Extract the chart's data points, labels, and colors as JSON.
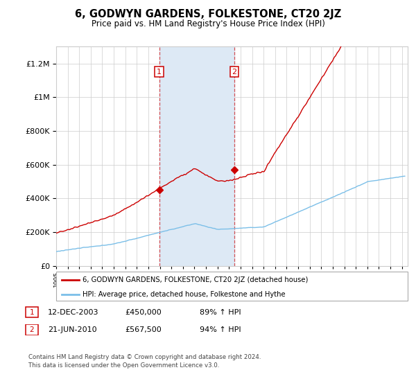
{
  "title": "6, GODWYN GARDENS, FOLKESTONE, CT20 2JZ",
  "subtitle": "Price paid vs. HM Land Registry's House Price Index (HPI)",
  "ytick_values": [
    0,
    200000,
    400000,
    600000,
    800000,
    1000000,
    1200000
  ],
  "ylim": [
    0,
    1300000
  ],
  "xlim_start": 1995.0,
  "xlim_end": 2025.5,
  "sale1_x": 2003.95,
  "sale1_y": 450000,
  "sale2_x": 2010.47,
  "sale2_y": 567500,
  "hpi_color": "#7bbfe8",
  "price_color": "#cc0000",
  "shade_color": "#dde9f5",
  "grid_color": "#cccccc",
  "background_color": "#ffffff",
  "legend_entry1": "6, GODWYN GARDENS, FOLKESTONE, CT20 2JZ (detached house)",
  "legend_entry2": "HPI: Average price, detached house, Folkestone and Hythe",
  "annotation1_date": "12-DEC-2003",
  "annotation1_price": "£450,000",
  "annotation1_hpi": "89% ↑ HPI",
  "annotation2_date": "21-JUN-2010",
  "annotation2_price": "£567,500",
  "annotation2_hpi": "94% ↑ HPI",
  "footnote": "Contains HM Land Registry data © Crown copyright and database right 2024.\nThis data is licensed under the Open Government Licence v3.0."
}
